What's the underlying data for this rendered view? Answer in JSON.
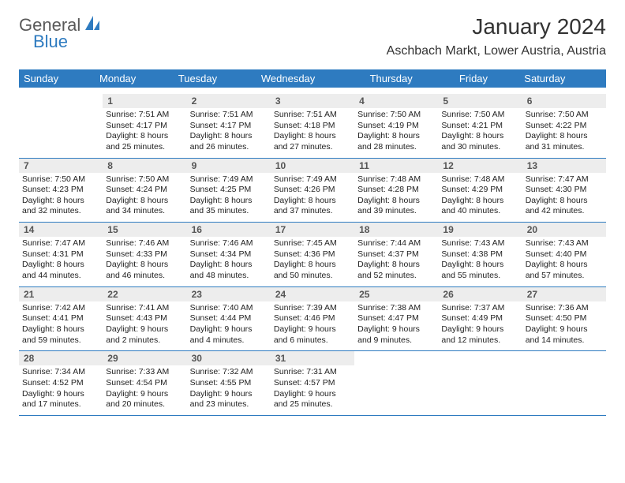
{
  "brand": {
    "part1": "General",
    "part2": "Blue"
  },
  "title": "January 2024",
  "location": "Aschbach Markt, Lower Austria, Austria",
  "colors": {
    "header_bg": "#2e7bc0",
    "header_text": "#ffffff",
    "daynum_bg": "#ededed",
    "daynum_text": "#555555",
    "body_text": "#222222",
    "border": "#2e7bc0",
    "brand_gray": "#5a5a5a",
    "brand_blue": "#2e7bc0"
  },
  "dow": [
    "Sunday",
    "Monday",
    "Tuesday",
    "Wednesday",
    "Thursday",
    "Friday",
    "Saturday"
  ],
  "weeks": [
    [
      {
        "n": "",
        "sr": "",
        "ss": "",
        "dl": ""
      },
      {
        "n": "1",
        "sr": "Sunrise: 7:51 AM",
        "ss": "Sunset: 4:17 PM",
        "dl": "Daylight: 8 hours and 25 minutes."
      },
      {
        "n": "2",
        "sr": "Sunrise: 7:51 AM",
        "ss": "Sunset: 4:17 PM",
        "dl": "Daylight: 8 hours and 26 minutes."
      },
      {
        "n": "3",
        "sr": "Sunrise: 7:51 AM",
        "ss": "Sunset: 4:18 PM",
        "dl": "Daylight: 8 hours and 27 minutes."
      },
      {
        "n": "4",
        "sr": "Sunrise: 7:50 AM",
        "ss": "Sunset: 4:19 PM",
        "dl": "Daylight: 8 hours and 28 minutes."
      },
      {
        "n": "5",
        "sr": "Sunrise: 7:50 AM",
        "ss": "Sunset: 4:21 PM",
        "dl": "Daylight: 8 hours and 30 minutes."
      },
      {
        "n": "6",
        "sr": "Sunrise: 7:50 AM",
        "ss": "Sunset: 4:22 PM",
        "dl": "Daylight: 8 hours and 31 minutes."
      }
    ],
    [
      {
        "n": "7",
        "sr": "Sunrise: 7:50 AM",
        "ss": "Sunset: 4:23 PM",
        "dl": "Daylight: 8 hours and 32 minutes."
      },
      {
        "n": "8",
        "sr": "Sunrise: 7:50 AM",
        "ss": "Sunset: 4:24 PM",
        "dl": "Daylight: 8 hours and 34 minutes."
      },
      {
        "n": "9",
        "sr": "Sunrise: 7:49 AM",
        "ss": "Sunset: 4:25 PM",
        "dl": "Daylight: 8 hours and 35 minutes."
      },
      {
        "n": "10",
        "sr": "Sunrise: 7:49 AM",
        "ss": "Sunset: 4:26 PM",
        "dl": "Daylight: 8 hours and 37 minutes."
      },
      {
        "n": "11",
        "sr": "Sunrise: 7:48 AM",
        "ss": "Sunset: 4:28 PM",
        "dl": "Daylight: 8 hours and 39 minutes."
      },
      {
        "n": "12",
        "sr": "Sunrise: 7:48 AM",
        "ss": "Sunset: 4:29 PM",
        "dl": "Daylight: 8 hours and 40 minutes."
      },
      {
        "n": "13",
        "sr": "Sunrise: 7:47 AM",
        "ss": "Sunset: 4:30 PM",
        "dl": "Daylight: 8 hours and 42 minutes."
      }
    ],
    [
      {
        "n": "14",
        "sr": "Sunrise: 7:47 AM",
        "ss": "Sunset: 4:31 PM",
        "dl": "Daylight: 8 hours and 44 minutes."
      },
      {
        "n": "15",
        "sr": "Sunrise: 7:46 AM",
        "ss": "Sunset: 4:33 PM",
        "dl": "Daylight: 8 hours and 46 minutes."
      },
      {
        "n": "16",
        "sr": "Sunrise: 7:46 AM",
        "ss": "Sunset: 4:34 PM",
        "dl": "Daylight: 8 hours and 48 minutes."
      },
      {
        "n": "17",
        "sr": "Sunrise: 7:45 AM",
        "ss": "Sunset: 4:36 PM",
        "dl": "Daylight: 8 hours and 50 minutes."
      },
      {
        "n": "18",
        "sr": "Sunrise: 7:44 AM",
        "ss": "Sunset: 4:37 PM",
        "dl": "Daylight: 8 hours and 52 minutes."
      },
      {
        "n": "19",
        "sr": "Sunrise: 7:43 AM",
        "ss": "Sunset: 4:38 PM",
        "dl": "Daylight: 8 hours and 55 minutes."
      },
      {
        "n": "20",
        "sr": "Sunrise: 7:43 AM",
        "ss": "Sunset: 4:40 PM",
        "dl": "Daylight: 8 hours and 57 minutes."
      }
    ],
    [
      {
        "n": "21",
        "sr": "Sunrise: 7:42 AM",
        "ss": "Sunset: 4:41 PM",
        "dl": "Daylight: 8 hours and 59 minutes."
      },
      {
        "n": "22",
        "sr": "Sunrise: 7:41 AM",
        "ss": "Sunset: 4:43 PM",
        "dl": "Daylight: 9 hours and 2 minutes."
      },
      {
        "n": "23",
        "sr": "Sunrise: 7:40 AM",
        "ss": "Sunset: 4:44 PM",
        "dl": "Daylight: 9 hours and 4 minutes."
      },
      {
        "n": "24",
        "sr": "Sunrise: 7:39 AM",
        "ss": "Sunset: 4:46 PM",
        "dl": "Daylight: 9 hours and 6 minutes."
      },
      {
        "n": "25",
        "sr": "Sunrise: 7:38 AM",
        "ss": "Sunset: 4:47 PM",
        "dl": "Daylight: 9 hours and 9 minutes."
      },
      {
        "n": "26",
        "sr": "Sunrise: 7:37 AM",
        "ss": "Sunset: 4:49 PM",
        "dl": "Daylight: 9 hours and 12 minutes."
      },
      {
        "n": "27",
        "sr": "Sunrise: 7:36 AM",
        "ss": "Sunset: 4:50 PM",
        "dl": "Daylight: 9 hours and 14 minutes."
      }
    ],
    [
      {
        "n": "28",
        "sr": "Sunrise: 7:34 AM",
        "ss": "Sunset: 4:52 PM",
        "dl": "Daylight: 9 hours and 17 minutes."
      },
      {
        "n": "29",
        "sr": "Sunrise: 7:33 AM",
        "ss": "Sunset: 4:54 PM",
        "dl": "Daylight: 9 hours and 20 minutes."
      },
      {
        "n": "30",
        "sr": "Sunrise: 7:32 AM",
        "ss": "Sunset: 4:55 PM",
        "dl": "Daylight: 9 hours and 23 minutes."
      },
      {
        "n": "31",
        "sr": "Sunrise: 7:31 AM",
        "ss": "Sunset: 4:57 PM",
        "dl": "Daylight: 9 hours and 25 minutes."
      },
      {
        "n": "",
        "sr": "",
        "ss": "",
        "dl": ""
      },
      {
        "n": "",
        "sr": "",
        "ss": "",
        "dl": ""
      },
      {
        "n": "",
        "sr": "",
        "ss": "",
        "dl": ""
      }
    ]
  ]
}
